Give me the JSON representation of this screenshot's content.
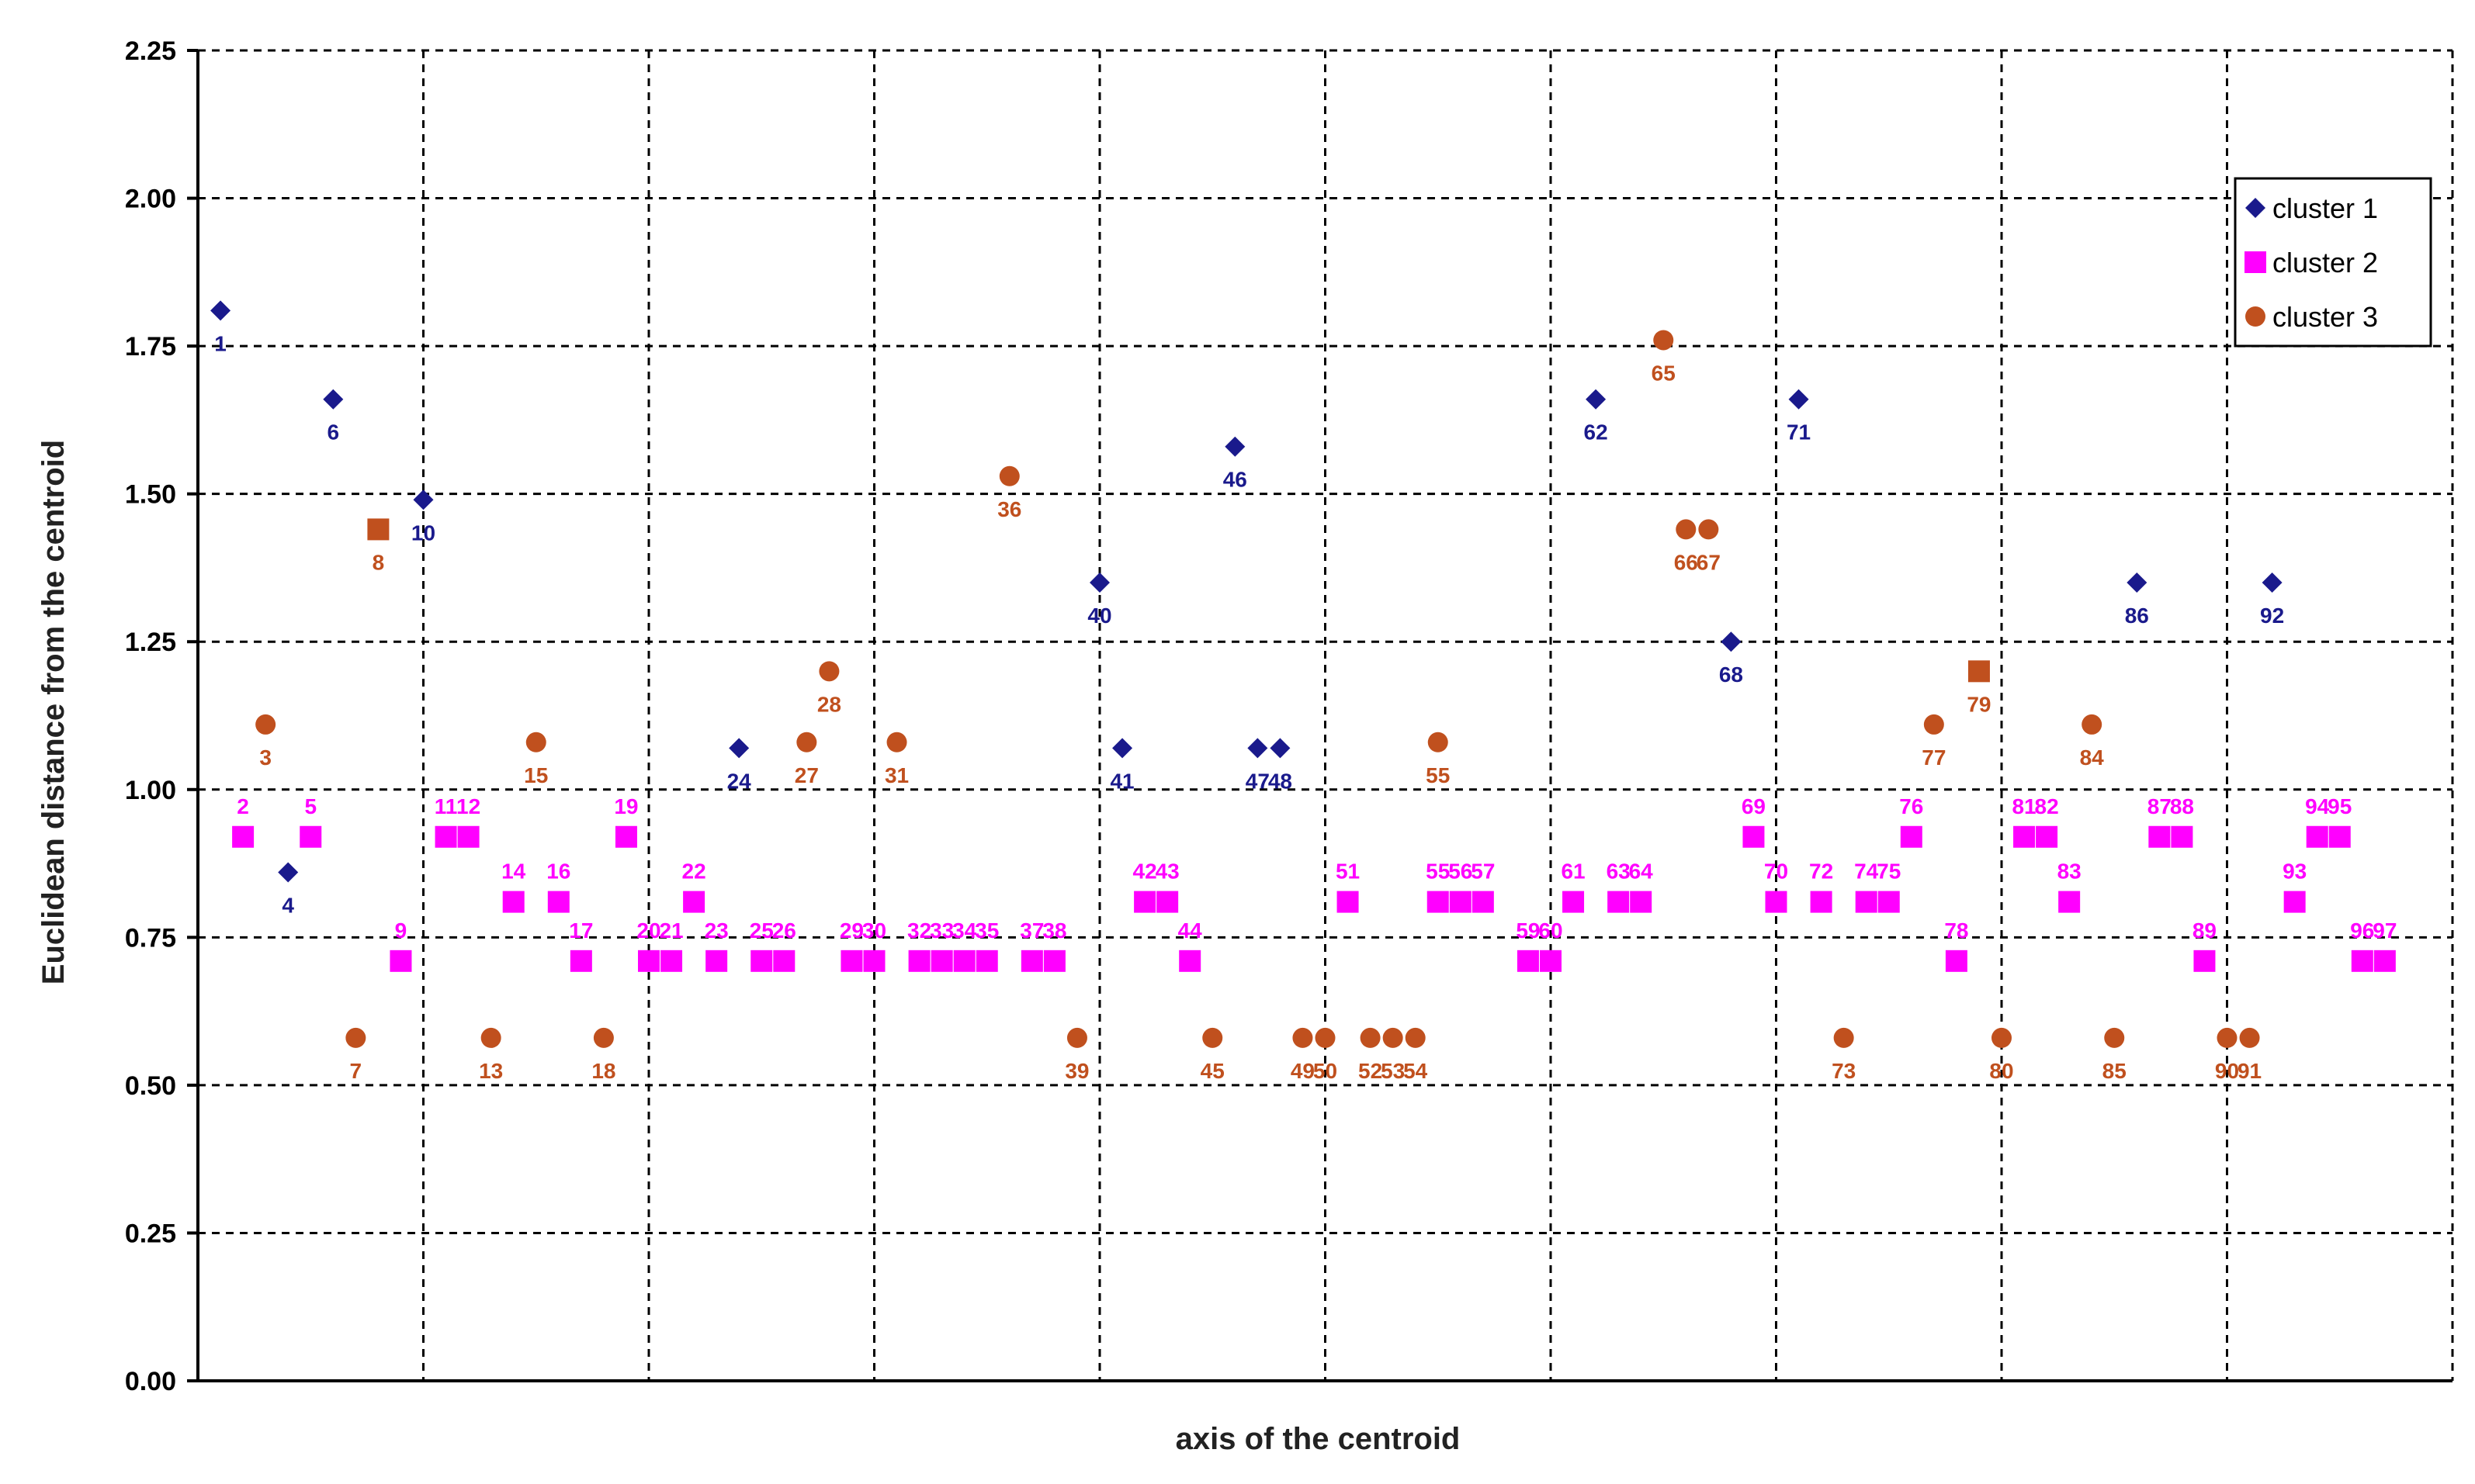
{
  "chart_data": {
    "type": "scatter",
    "title": "",
    "xlabel": "axis of the centroid",
    "ylabel": "Euclidean distance  from  the centroid",
    "ylim": [
      0,
      2.25
    ],
    "yticks": [
      "0.00",
      "0.25",
      "0.50",
      "0.75",
      "1.00",
      "1.25",
      "1.50",
      "1.75",
      "2.00",
      "2.25"
    ],
    "xlim": [
      0,
      100
    ],
    "grid": true,
    "legend_position": "top-right",
    "series": [
      {
        "name": "cluster 1",
        "color": "#1a1a8c",
        "marker": "diamond",
        "points": [
          {
            "x": 1,
            "y": 1.81,
            "label": "1"
          },
          {
            "x": 4,
            "y": 0.86,
            "label": "4"
          },
          {
            "x": 6,
            "y": 1.66,
            "label": "6"
          },
          {
            "x": 10,
            "y": 1.49,
            "label": "10"
          },
          {
            "x": 24,
            "y": 1.07,
            "label": "24"
          },
          {
            "x": 40,
            "y": 1.35,
            "label": "40"
          },
          {
            "x": 41,
            "y": 1.07,
            "label": "41"
          },
          {
            "x": 46,
            "y": 1.58,
            "label": "46"
          },
          {
            "x": 47,
            "y": 1.07,
            "label": "47"
          },
          {
            "x": 48,
            "y": 1.07,
            "label": "48"
          },
          {
            "x": 62,
            "y": 1.66,
            "label": "62"
          },
          {
            "x": 68,
            "y": 1.25,
            "label": "68"
          },
          {
            "x": 71,
            "y": 1.66,
            "label": "71"
          },
          {
            "x": 86,
            "y": 1.35,
            "label": "86"
          },
          {
            "x": 92,
            "y": 1.35,
            "label": "92"
          }
        ]
      },
      {
        "name": "cluster 2",
        "color": "#ff00ff",
        "marker": "square",
        "points": [
          {
            "x": 2,
            "y": 0.92,
            "label": "2"
          },
          {
            "x": 5,
            "y": 0.92,
            "label": "5"
          },
          {
            "x": 9,
            "y": 0.71,
            "label": "9"
          },
          {
            "x": 11,
            "y": 0.92,
            "label": "11"
          },
          {
            "x": 12,
            "y": 0.92,
            "label": "12"
          },
          {
            "x": 14,
            "y": 0.81,
            "label": "14"
          },
          {
            "x": 16,
            "y": 0.81,
            "label": "16"
          },
          {
            "x": 17,
            "y": 0.71,
            "label": "17"
          },
          {
            "x": 19,
            "y": 0.92,
            "label": "19"
          },
          {
            "x": 20,
            "y": 0.71,
            "label": "20"
          },
          {
            "x": 21,
            "y": 0.71,
            "label": "21"
          },
          {
            "x": 22,
            "y": 0.81,
            "label": "22"
          },
          {
            "x": 23,
            "y": 0.71,
            "label": "23"
          },
          {
            "x": 25,
            "y": 0.71,
            "label": "25"
          },
          {
            "x": 26,
            "y": 0.71,
            "label": "26"
          },
          {
            "x": 29,
            "y": 0.71,
            "label": "29"
          },
          {
            "x": 30,
            "y": 0.71,
            "label": "30"
          },
          {
            "x": 32,
            "y": 0.71,
            "label": "32"
          },
          {
            "x": 33,
            "y": 0.71,
            "label": "33"
          },
          {
            "x": 34,
            "y": 0.71,
            "label": "34"
          },
          {
            "x": 35,
            "y": 0.71,
            "label": "35"
          },
          {
            "x": 37,
            "y": 0.71,
            "label": "37"
          },
          {
            "x": 38,
            "y": 0.71,
            "label": "38"
          },
          {
            "x": 42,
            "y": 0.81,
            "label": "42"
          },
          {
            "x": 43,
            "y": 0.81,
            "label": "43"
          },
          {
            "x": 44,
            "y": 0.71,
            "label": "44"
          },
          {
            "x": 51,
            "y": 0.81,
            "label": "51"
          },
          {
            "x": 55,
            "y": 0.81,
            "label": "55"
          },
          {
            "x": 56,
            "y": 0.81,
            "label": "56"
          },
          {
            "x": 57,
            "y": 0.81,
            "label": "57"
          },
          {
            "x": 59,
            "y": 0.71,
            "label": "59"
          },
          {
            "x": 60,
            "y": 0.71,
            "label": "60"
          },
          {
            "x": 61,
            "y": 0.81,
            "label": "61"
          },
          {
            "x": 63,
            "y": 0.81,
            "label": "63"
          },
          {
            "x": 64,
            "y": 0.81,
            "label": "64"
          },
          {
            "x": 69,
            "y": 0.92,
            "label": "69"
          },
          {
            "x": 70,
            "y": 0.81,
            "label": "70"
          },
          {
            "x": 72,
            "y": 0.81,
            "label": "72"
          },
          {
            "x": 74,
            "y": 0.81,
            "label": "74"
          },
          {
            "x": 75,
            "y": 0.81,
            "label": "75"
          },
          {
            "x": 76,
            "y": 0.92,
            "label": "76"
          },
          {
            "x": 78,
            "y": 0.71,
            "label": "78"
          },
          {
            "x": 81,
            "y": 0.92,
            "label": "81"
          },
          {
            "x": 82,
            "y": 0.92,
            "label": "82"
          },
          {
            "x": 83,
            "y": 0.81,
            "label": "83"
          },
          {
            "x": 87,
            "y": 0.92,
            "label": "87"
          },
          {
            "x": 88,
            "y": 0.92,
            "label": "88"
          },
          {
            "x": 89,
            "y": 0.71,
            "label": "89"
          },
          {
            "x": 93,
            "y": 0.81,
            "label": "93"
          },
          {
            "x": 94,
            "y": 0.92,
            "label": "94"
          },
          {
            "x": 95,
            "y": 0.92,
            "label": "95"
          },
          {
            "x": 96,
            "y": 0.71,
            "label": "96"
          },
          {
            "x": 97,
            "y": 0.71,
            "label": "97"
          }
        ]
      },
      {
        "name": "cluster 3",
        "color": "#c0501e",
        "marker": "circle",
        "points": [
          {
            "x": 3,
            "y": 1.11,
            "label": "3"
          },
          {
            "x": 7,
            "y": 0.58,
            "label": "7"
          },
          {
            "x": 8,
            "y": 1.44,
            "label": "8",
            "marker": "square"
          },
          {
            "x": 13,
            "y": 0.58,
            "label": "13"
          },
          {
            "x": 15,
            "y": 1.08,
            "label": "15"
          },
          {
            "x": 18,
            "y": 0.58,
            "label": "18"
          },
          {
            "x": 27,
            "y": 1.08,
            "label": "27"
          },
          {
            "x": 28,
            "y": 1.2,
            "label": "28"
          },
          {
            "x": 31,
            "y": 1.08,
            "label": "31"
          },
          {
            "x": 36,
            "y": 1.53,
            "label": "36"
          },
          {
            "x": 39,
            "y": 0.58,
            "label": "39"
          },
          {
            "x": 45,
            "y": 0.58,
            "label": "45"
          },
          {
            "x": 49,
            "y": 0.58,
            "label": "49"
          },
          {
            "x": 50,
            "y": 0.58,
            "label": "50"
          },
          {
            "x": 52,
            "y": 0.58,
            "label": "52"
          },
          {
            "x": 53,
            "y": 0.58,
            "label": "53"
          },
          {
            "x": 54,
            "y": 0.58,
            "label": "54"
          },
          {
            "x": 55,
            "y": 1.08,
            "label": "55"
          },
          {
            "x": 65,
            "y": 1.76,
            "label": "65"
          },
          {
            "x": 66,
            "y": 1.44,
            "label": "66"
          },
          {
            "x": 67,
            "y": 1.44,
            "label": "67"
          },
          {
            "x": 73,
            "y": 0.58,
            "label": "73"
          },
          {
            "x": 77,
            "y": 1.11,
            "label": "77"
          },
          {
            "x": 79,
            "y": 1.2,
            "label": "79",
            "marker": "square"
          },
          {
            "x": 80,
            "y": 0.58,
            "label": "80"
          },
          {
            "x": 84,
            "y": 1.11,
            "label": "84"
          },
          {
            "x": 85,
            "y": 0.58,
            "label": "85"
          },
          {
            "x": 90,
            "y": 0.58,
            "label": "90"
          },
          {
            "x": 91,
            "y": 0.58,
            "label": "91"
          }
        ]
      }
    ]
  }
}
